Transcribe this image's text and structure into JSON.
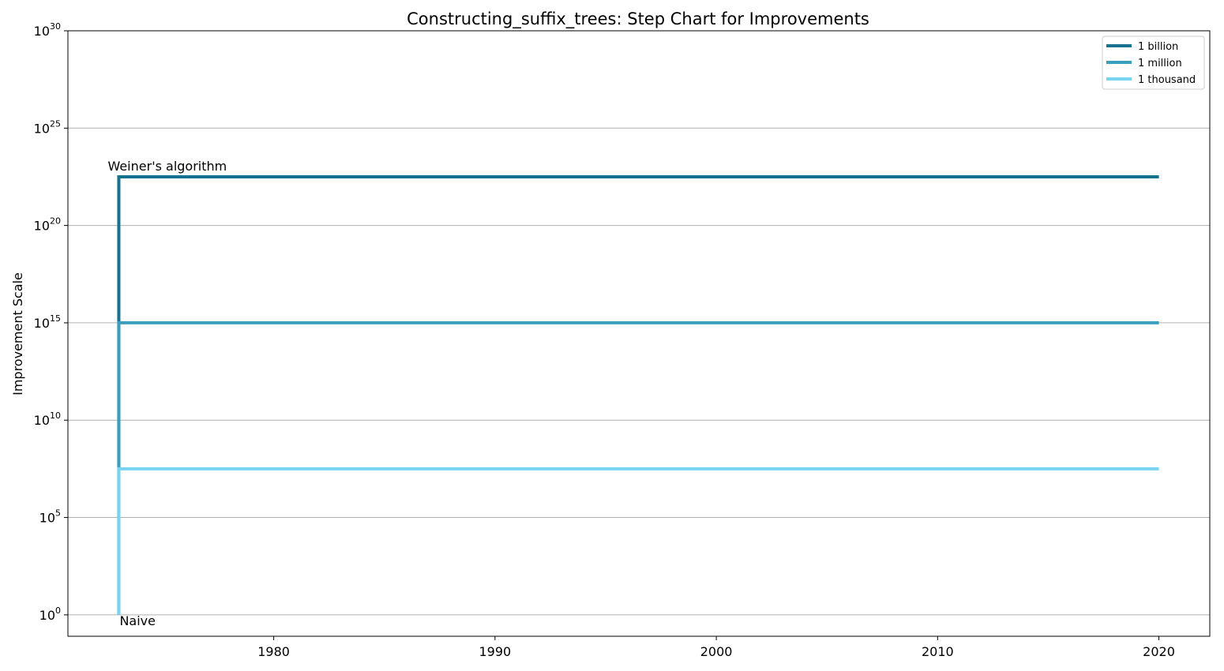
{
  "chart_data": {
    "type": "line",
    "step": true,
    "title": "Constructing_suffix_trees: Step Chart for Improvements",
    "xlabel": "",
    "ylabel": "Improvement Scale",
    "xlim": [
      1970.7,
      2022.3
    ],
    "ylim_exponent": [
      -1.1,
      30
    ],
    "y_scale": "log",
    "grid": "y",
    "legend_position": "top-right",
    "x_ticks": [
      "1980",
      "1990",
      "2000",
      "2010",
      "2020"
    ],
    "y_ticks": [
      {
        "base": "10",
        "exp": "0"
      },
      {
        "base": "10",
        "exp": "5"
      },
      {
        "base": "10",
        "exp": "10"
      },
      {
        "base": "10",
        "exp": "15"
      },
      {
        "base": "10",
        "exp": "20"
      },
      {
        "base": "10",
        "exp": "25"
      },
      {
        "base": "10",
        "exp": "30"
      }
    ],
    "series": [
      {
        "name": "1 billion",
        "color": "#17728f",
        "x": [
          1973,
          1973,
          2020
        ],
        "y_exponent": [
          0,
          22.5,
          22.5
        ]
      },
      {
        "name": "1 million",
        "color": "#3a9ebd",
        "x": [
          1973,
          1973,
          2020
        ],
        "y_exponent": [
          0,
          15,
          15
        ]
      },
      {
        "name": "1 thousand",
        "color": "#79d4f2",
        "x": [
          1973,
          1973,
          2020
        ],
        "y_exponent": [
          0,
          7.5,
          7.5
        ]
      }
    ],
    "annotations": [
      {
        "text": "Weiner's algorithm",
        "x": 1973,
        "y_exponent": 22.5
      },
      {
        "text": "Naive",
        "x": 1973,
        "y_exponent": 0
      }
    ]
  }
}
